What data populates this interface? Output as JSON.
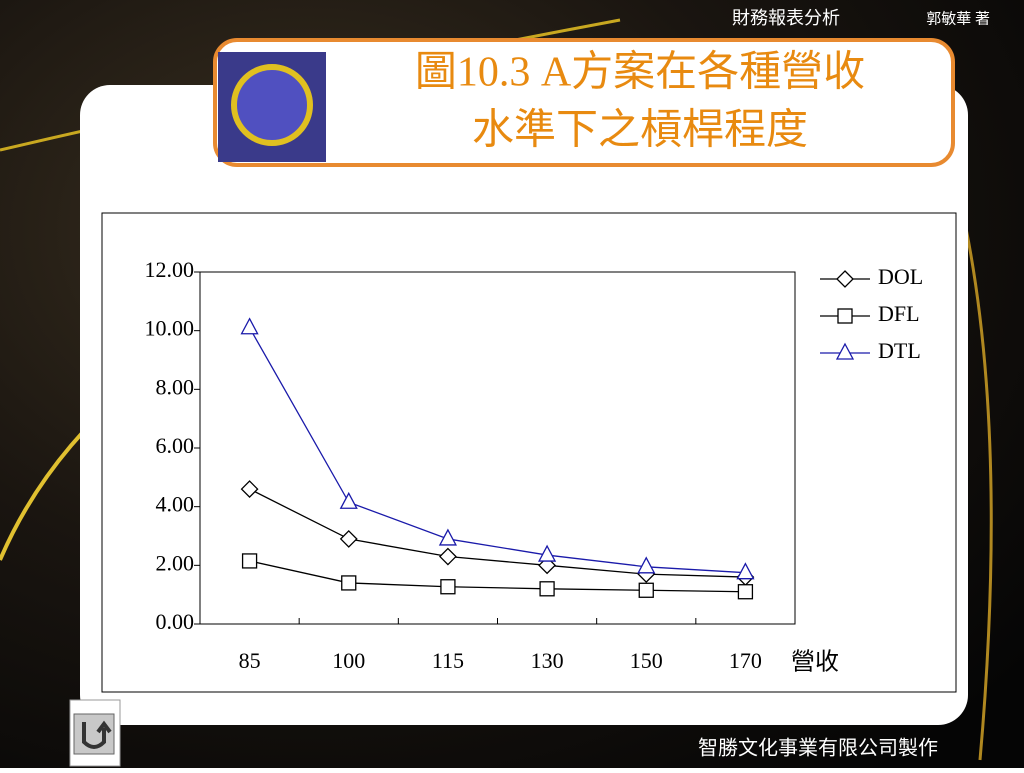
{
  "slide": {
    "book": "財務報表分析",
    "author": "郭敏華 著",
    "title_lines": [
      "圖10.3 A方案在各種營收",
      "水準下之槓桿程度"
    ],
    "footer": "智勝文化事業有限公司製作"
  },
  "chart_data": {
    "type": "line",
    "x_label": "營收",
    "categories": [
      "85",
      "100",
      "115",
      "130",
      "150",
      "170"
    ],
    "series": [
      {
        "name": "DOL",
        "color": "#000000",
        "marker": "diamond",
        "values": [
          4.6,
          2.9,
          2.3,
          2.0,
          1.7,
          1.6
        ]
      },
      {
        "name": "DFL",
        "color": "#000000",
        "marker": "square",
        "values": [
          2.15,
          1.4,
          1.27,
          1.2,
          1.15,
          1.1
        ]
      },
      {
        "name": "DTL",
        "color": "#1a1aaa",
        "marker": "triangle",
        "values": [
          10.1,
          4.15,
          2.9,
          2.35,
          1.95,
          1.75
        ]
      }
    ],
    "ylim": [
      0,
      12
    ],
    "yticks": [
      {
        "value": 0,
        "label": "0.00"
      },
      {
        "value": 2,
        "label": "2.00"
      },
      {
        "value": 4,
        "label": "4.00"
      },
      {
        "value": 6,
        "label": "6.00"
      },
      {
        "value": 8,
        "label": "8.00"
      },
      {
        "value": 10,
        "label": "10.00"
      },
      {
        "value": 12,
        "label": "12.00"
      }
    ],
    "legend": "right"
  }
}
